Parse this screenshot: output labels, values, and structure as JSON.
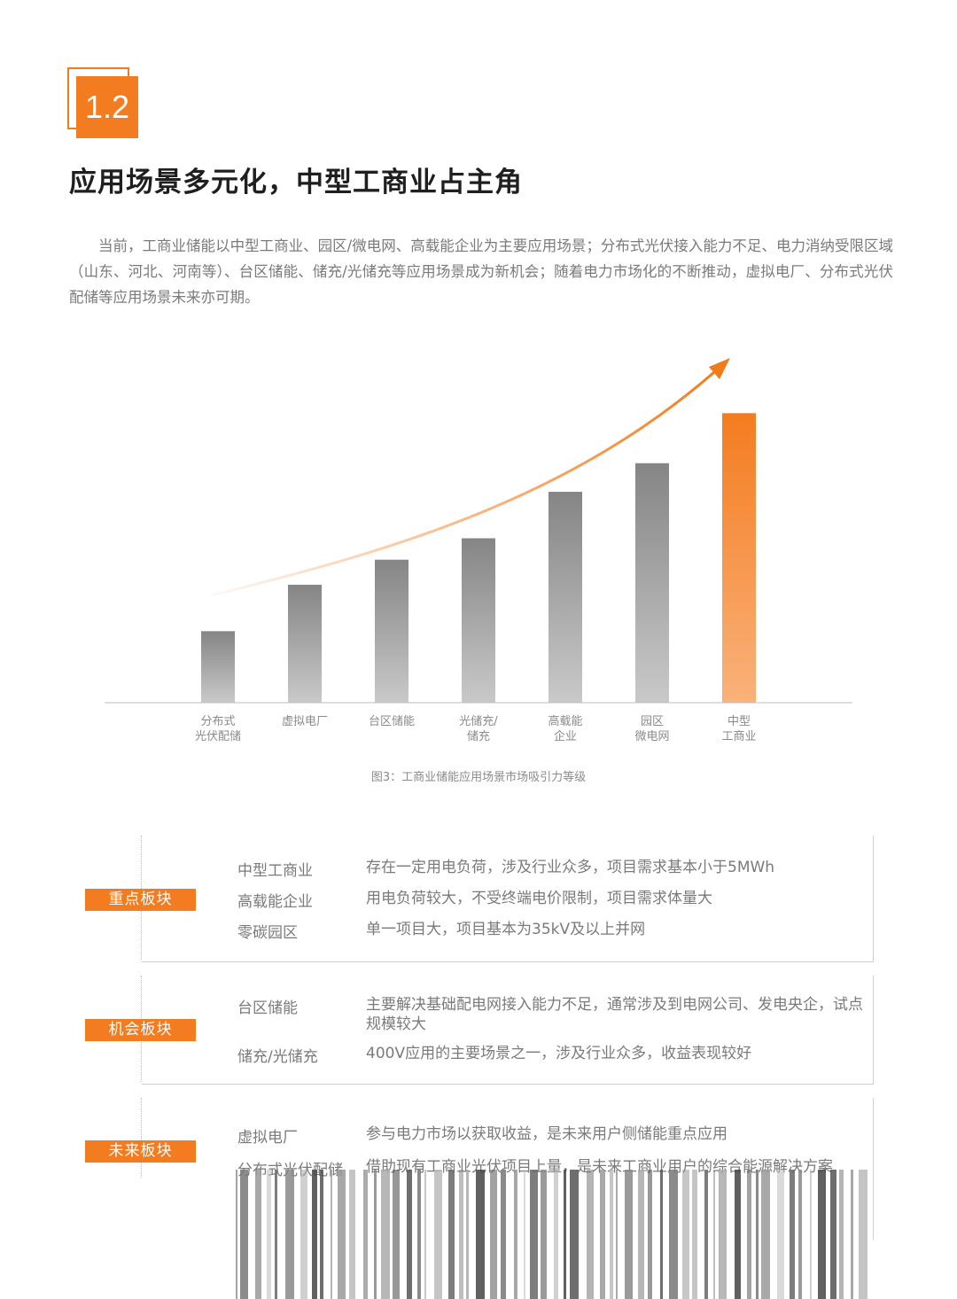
{
  "section_number": "1.2",
  "title": "应用场景多元化，中型工商业占主角",
  "intro": "当前，工商业储能以中型工商业、园区/微电网、高载能企业为主要应用场景；分布式光伏接入能力不足、电力消纳受限区域（山东、河北、河南等）、台区储能、储充/光储充等应用场景成为新机会；随着电力市场化的不断推动，虚拟电厂、分布式光伏配储等应用场景未来亦可期。",
  "chart_data": {
    "type": "bar",
    "categories": [
      "分布式\n光伏配储",
      "虚拟电厂",
      "台区储能",
      "光储充/\n储充",
      "高载能\n企业",
      "园区\n微电网",
      "中型\n工商业"
    ],
    "values": [
      1.0,
      1.65,
      2.0,
      2.3,
      2.95,
      3.35,
      4.05
    ],
    "ylim": [
      0,
      4.5
    ],
    "highlight_index": 6,
    "colors": {
      "bar": "#8c8c8c",
      "highlight": "#f47c20",
      "trend": "#f07c1c"
    }
  },
  "caption": "图3：工商业储能应用场景市场吸引力等级",
  "sections": [
    {
      "tag": "重点板块",
      "rows": [
        {
          "name": "中型工商业",
          "desc": "存在一定用电负荷，涉及行业众多，项目需求基本小于5MWh"
        },
        {
          "name": "高载能企业",
          "desc": "用电负荷较大，不受终端电价限制，项目需求体量大"
        },
        {
          "name": "零碳园区",
          "desc": "单一项目大，项目基本为35kV及以上并网"
        }
      ]
    },
    {
      "tag": "机会板块",
      "rows": [
        {
          "name": "台区储能",
          "desc": "主要解决基础配电网接入能力不足，通常涉及到电网公司、发电央企，试点规模较大"
        },
        {
          "name": "储充/光储充",
          "desc": "400V应用的主要场景之一，涉及行业众多，收益表现较好"
        }
      ]
    },
    {
      "tag": "未来板块",
      "rows": [
        {
          "name": "虚拟电厂",
          "desc": "参与电力市场以获取收益，是未来用户侧储能重点应用"
        },
        {
          "name": "分布式光伏配储",
          "desc": "借助现有工商业光伏项目上量，是未来工商业用户的综合能源解决方案"
        }
      ]
    }
  ]
}
